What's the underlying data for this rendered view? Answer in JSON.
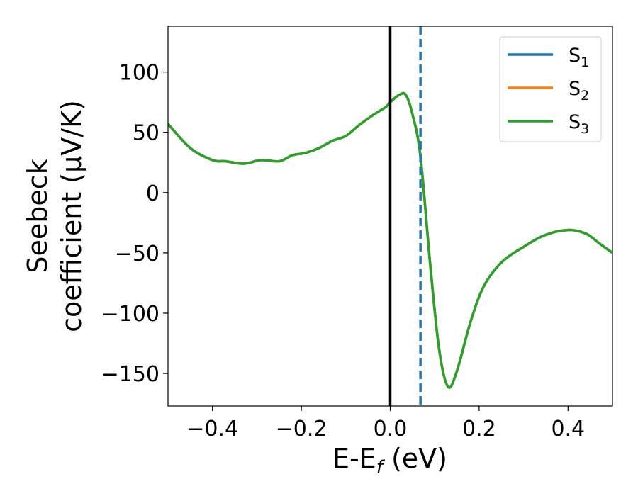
{
  "chart_data": {
    "type": "line",
    "xlabel": {
      "main": "E-E",
      "sub": "f",
      "unit": " (eV)"
    },
    "ylabel": {
      "line1": "Seebeck",
      "line2": "coefficient  (μV/K)"
    },
    "xlim": [
      -0.5,
      0.5
    ],
    "ylim": [
      -177,
      138
    ],
    "xticks": [
      -0.4,
      -0.2,
      0.0,
      0.2,
      0.4
    ],
    "xtick_labels": [
      "−0.4",
      "−0.2",
      "0.0",
      "0.2",
      "0.4"
    ],
    "yticks": [
      100,
      50,
      0,
      -50,
      -100,
      -150
    ],
    "ytick_labels": [
      "100",
      "50",
      "0",
      "−50",
      "−100",
      "−150"
    ],
    "grid": false,
    "legend_placement": "top-right",
    "vlines": [
      {
        "x": 0.0,
        "style": "solid",
        "color": "#000000"
      },
      {
        "x": 0.068,
        "style": "dashed",
        "color": "#1f77b4"
      }
    ],
    "series": [
      {
        "name": "S",
        "sub": "1",
        "color": "#1f77b4",
        "x": [
          -0.5,
          -0.45,
          -0.4,
          -0.37,
          -0.33,
          -0.29,
          -0.25,
          -0.22,
          -0.19,
          -0.16,
          -0.13,
          -0.1,
          -0.07,
          -0.04,
          -0.01,
          0.0,
          0.02,
          0.035,
          0.05,
          0.068,
          0.09,
          0.11,
          0.13,
          0.15,
          0.18,
          0.21,
          0.25,
          0.3,
          0.35,
          0.4,
          0.44,
          0.47,
          0.5
        ],
        "y": [
          57,
          37,
          27,
          26,
          24,
          27,
          26,
          31,
          33,
          37,
          43,
          47,
          56,
          64,
          71,
          75,
          81,
          81,
          65,
          30,
          -60,
          -130,
          -161,
          -148,
          -108,
          -78,
          -58,
          -45,
          -35,
          -31,
          -34,
          -42,
          -50
        ]
      },
      {
        "name": "S",
        "sub": "2",
        "color": "#ff7f0e",
        "x": [
          -0.5,
          -0.45,
          -0.4,
          -0.37,
          -0.33,
          -0.29,
          -0.25,
          -0.22,
          -0.19,
          -0.16,
          -0.13,
          -0.1,
          -0.07,
          -0.04,
          -0.01,
          0.0,
          0.02,
          0.035,
          0.05,
          0.068,
          0.09,
          0.11,
          0.13,
          0.15,
          0.18,
          0.21,
          0.25,
          0.3,
          0.35,
          0.4,
          0.44,
          0.47,
          0.5
        ],
        "y": [
          57,
          37,
          27,
          26,
          24,
          27,
          26,
          31,
          33,
          37,
          43,
          47,
          56,
          64,
          71,
          75,
          81,
          81,
          65,
          30,
          -60,
          -130,
          -161,
          -148,
          -108,
          -78,
          -58,
          -45,
          -35,
          -31,
          -34,
          -42,
          -50
        ]
      },
      {
        "name": "S",
        "sub": "3",
        "color": "#2ca02c",
        "x": [
          -0.5,
          -0.45,
          -0.4,
          -0.37,
          -0.33,
          -0.29,
          -0.25,
          -0.22,
          -0.19,
          -0.16,
          -0.13,
          -0.1,
          -0.07,
          -0.04,
          -0.01,
          0.0,
          0.02,
          0.035,
          0.05,
          0.068,
          0.09,
          0.11,
          0.13,
          0.15,
          0.18,
          0.21,
          0.25,
          0.3,
          0.35,
          0.4,
          0.44,
          0.47,
          0.5
        ],
        "y": [
          57,
          37,
          27,
          26,
          24,
          27,
          26,
          31,
          33,
          37,
          43,
          47,
          56,
          64,
          71,
          75,
          81,
          81,
          65,
          30,
          -60,
          -130,
          -161,
          -148,
          -108,
          -78,
          -58,
          -45,
          -35,
          -31,
          -34,
          -42,
          -50
        ]
      }
    ]
  }
}
